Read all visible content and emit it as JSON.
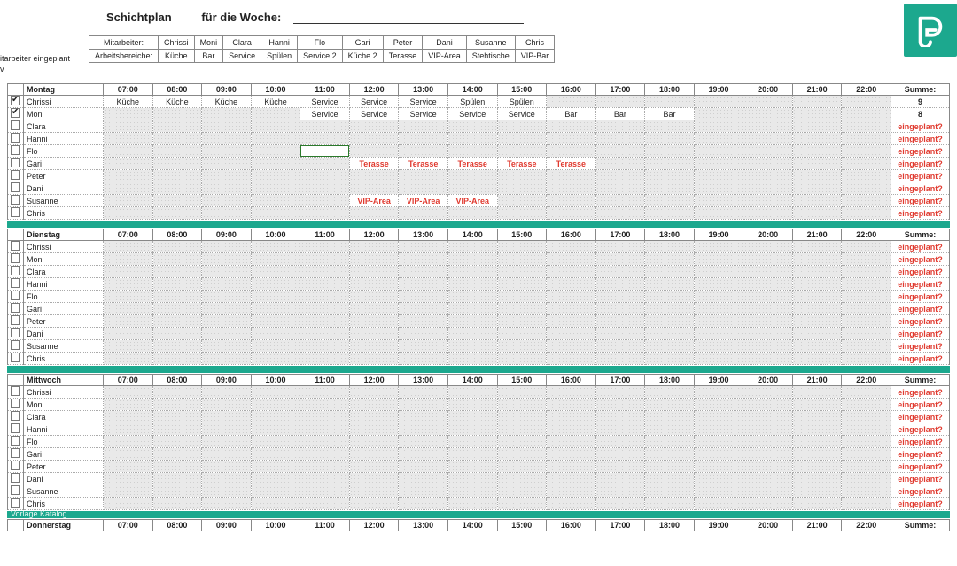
{
  "title": {
    "a": "Schichtplan",
    "b": "für die Woche:"
  },
  "header": {
    "rows": [
      {
        "label": "Mitarbeiter:",
        "cells": [
          "Chrissi",
          "Moni",
          "Clara",
          "Hanni",
          "Flo",
          "Gari",
          "Peter",
          "Dani",
          "Susanne",
          "Chris"
        ]
      },
      {
        "label": "Arbeitsbereiche:",
        "cells": [
          "Küche",
          "Bar",
          "Service",
          "Spülen",
          "Service 2",
          "Küche 2",
          "Terasse",
          "VIP-Area",
          "Stehtische",
          "VIP-Bar"
        ]
      }
    ]
  },
  "sidelabel": [
    "itarbeiter eingeplant",
    "v"
  ],
  "times": [
    "07:00",
    "08:00",
    "09:00",
    "10:00",
    "11:00",
    "12:00",
    "13:00",
    "14:00",
    "15:00",
    "16:00",
    "17:00",
    "18:00",
    "19:00",
    "20:00",
    "21:00",
    "22:00"
  ],
  "sumLabel": "Summe:",
  "eingeplant": "eingeplant?",
  "colors": {
    "accent": "#1ca88e",
    "red": "#e03a2f",
    "grid": "#aaaaaa",
    "bg": "#ffffff",
    "rowbg": "#e9e9e9"
  },
  "footer": "Vorlage Katalog",
  "days": [
    {
      "name": "Montag",
      "rows": [
        {
          "emp": "Chrissi",
          "chk": true,
          "sum": "9",
          "cells": {
            "07:00": "Küche",
            "08:00": "Küche",
            "09:00": "Küche",
            "10:00": "Küche",
            "11:00": "Service",
            "12:00": "Service",
            "13:00": "Service",
            "14:00": "Spülen",
            "15:00": "Spülen"
          }
        },
        {
          "emp": "Moni",
          "chk": true,
          "sum": "8",
          "cells": {
            "11:00": "Service",
            "12:00": "Service",
            "13:00": "Service",
            "14:00": "Service",
            "15:00": "Service",
            "16:00": "Bar",
            "17:00": "Bar",
            "18:00": "Bar"
          }
        },
        {
          "emp": "Clara",
          "chk": false,
          "sum": "eingeplant?",
          "cells": {}
        },
        {
          "emp": "Hanni",
          "chk": false,
          "sum": "eingeplant?",
          "cells": {}
        },
        {
          "emp": "Flo",
          "chk": false,
          "sum": "eingeplant?",
          "cells": {},
          "sel": "11:00"
        },
        {
          "emp": "Gari",
          "chk": false,
          "sum": "eingeplant?",
          "cells": {
            "12:00": "Terasse",
            "13:00": "Terasse",
            "14:00": "Terasse",
            "15:00": "Terasse",
            "16:00": "Terasse"
          },
          "red": true
        },
        {
          "emp": "Peter",
          "chk": false,
          "sum": "eingeplant?",
          "cells": {}
        },
        {
          "emp": "Dani",
          "chk": false,
          "sum": "eingeplant?",
          "cells": {}
        },
        {
          "emp": "Susanne",
          "chk": false,
          "sum": "eingeplant?",
          "cells": {
            "12:00": "VIP-Area",
            "13:00": "VIP-Area",
            "14:00": "VIP-Area"
          },
          "red": true
        },
        {
          "emp": "Chris",
          "chk": false,
          "sum": "eingeplant?",
          "cells": {}
        }
      ]
    },
    {
      "name": "Dienstag",
      "rows": [
        {
          "emp": "Chrissi",
          "chk": false,
          "sum": "eingeplant?",
          "cells": {}
        },
        {
          "emp": "Moni",
          "chk": false,
          "sum": "eingeplant?",
          "cells": {}
        },
        {
          "emp": "Clara",
          "chk": false,
          "sum": "eingeplant?",
          "cells": {}
        },
        {
          "emp": "Hanni",
          "chk": false,
          "sum": "eingeplant?",
          "cells": {}
        },
        {
          "emp": "Flo",
          "chk": false,
          "sum": "eingeplant?",
          "cells": {}
        },
        {
          "emp": "Gari",
          "chk": false,
          "sum": "eingeplant?",
          "cells": {}
        },
        {
          "emp": "Peter",
          "chk": false,
          "sum": "eingeplant?",
          "cells": {}
        },
        {
          "emp": "Dani",
          "chk": false,
          "sum": "eingeplant?",
          "cells": {}
        },
        {
          "emp": "Susanne",
          "chk": false,
          "sum": "eingeplant?",
          "cells": {}
        },
        {
          "emp": "Chris",
          "chk": false,
          "sum": "eingeplant?",
          "cells": {}
        }
      ]
    },
    {
      "name": "Mittwoch",
      "rows": [
        {
          "emp": "Chrissi",
          "chk": false,
          "sum": "eingeplant?",
          "cells": {}
        },
        {
          "emp": "Moni",
          "chk": false,
          "sum": "eingeplant?",
          "cells": {}
        },
        {
          "emp": "Clara",
          "chk": false,
          "sum": "eingeplant?",
          "cells": {}
        },
        {
          "emp": "Hanni",
          "chk": false,
          "sum": "eingeplant?",
          "cells": {}
        },
        {
          "emp": "Flo",
          "chk": false,
          "sum": "eingeplant?",
          "cells": {}
        },
        {
          "emp": "Gari",
          "chk": false,
          "sum": "eingeplant?",
          "cells": {}
        },
        {
          "emp": "Peter",
          "chk": false,
          "sum": "eingeplant?",
          "cells": {}
        },
        {
          "emp": "Dani",
          "chk": false,
          "sum": "eingeplant?",
          "cells": {}
        },
        {
          "emp": "Susanne",
          "chk": false,
          "sum": "eingeplant?",
          "cells": {}
        },
        {
          "emp": "Chris",
          "chk": false,
          "sum": "eingeplant?",
          "cells": {}
        }
      ]
    },
    {
      "name": "Donnerstag",
      "headerOnly": true
    }
  ]
}
